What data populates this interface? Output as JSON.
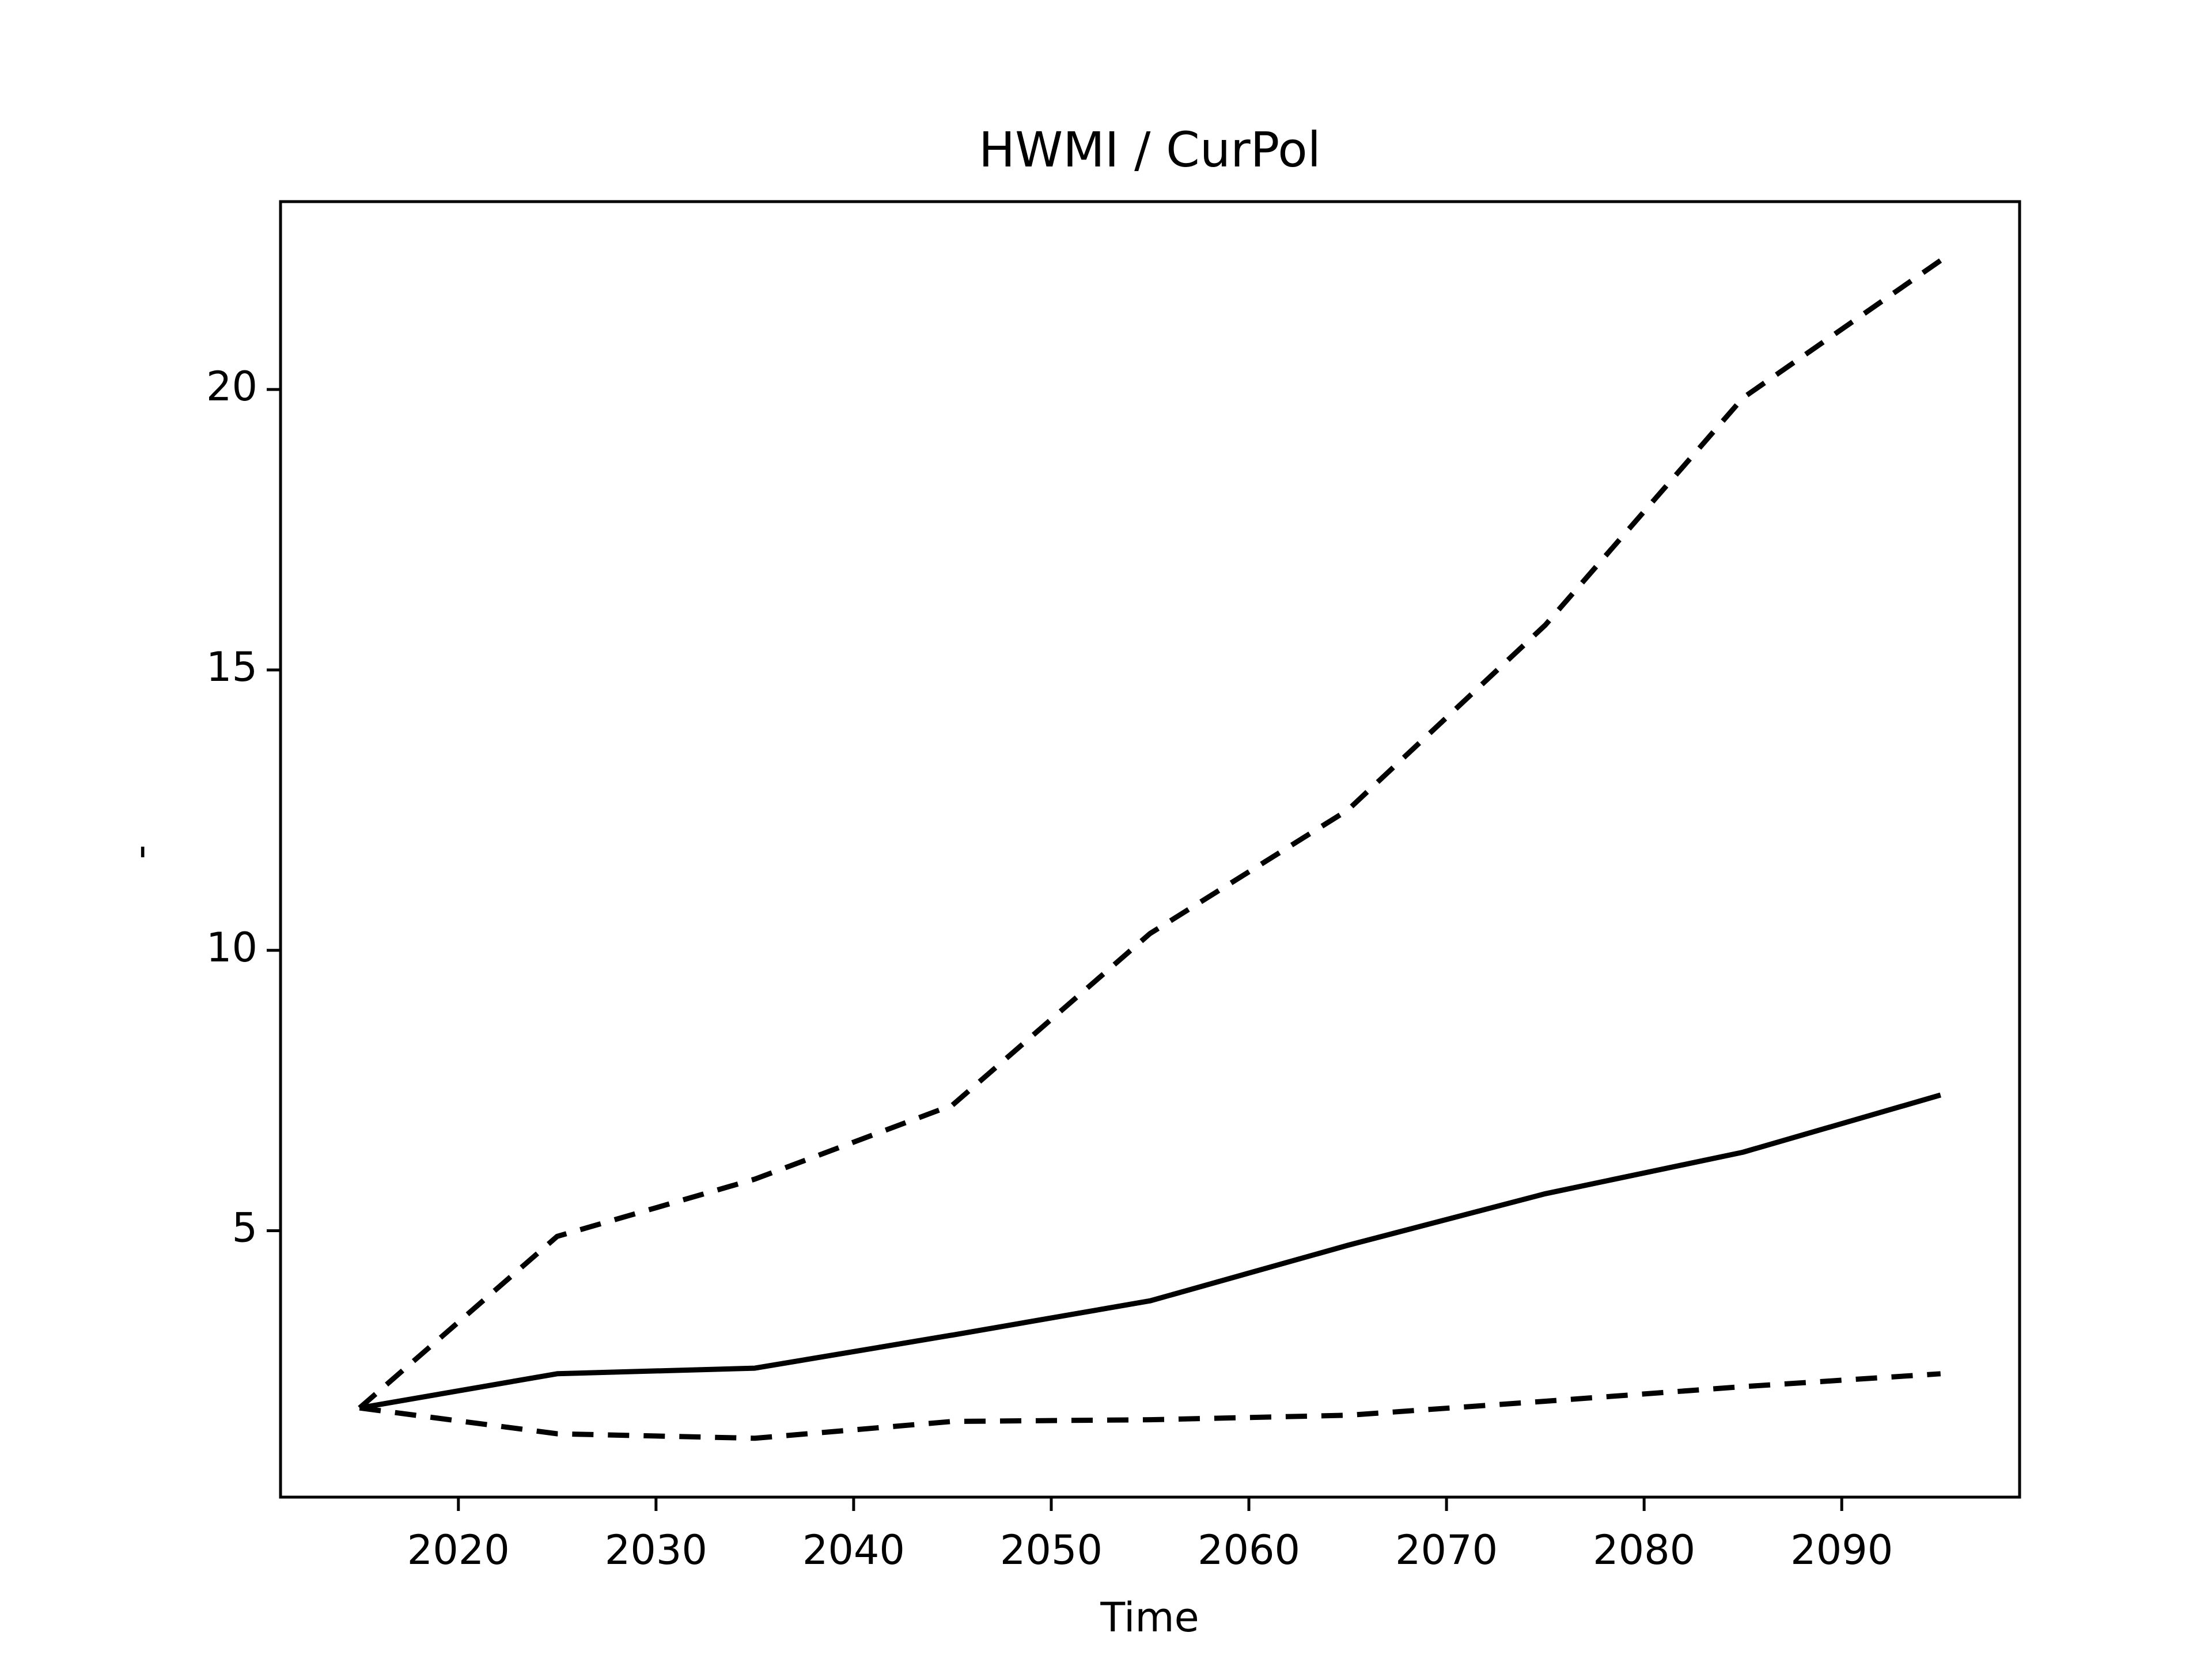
{
  "chart_data": {
    "type": "line",
    "title": "HWMI / CurPol",
    "xlabel": "Time",
    "ylabel": "-",
    "x": [
      2015,
      2025,
      2035,
      2045,
      2055,
      2065,
      2075,
      2085,
      2095
    ],
    "series": [
      {
        "color": "#000000",
        "linestyle": "solid",
        "values": [
          1.84,
          2.45,
          2.55,
          3.14,
          3.75,
          4.74,
          5.66,
          6.4,
          7.42
        ]
      },
      {
        "color": "#000000",
        "linestyle": "dashed",
        "values": [
          1.84,
          4.9,
          5.92,
          7.24,
          10.3,
          12.5,
          15.8,
          19.85,
          22.3
        ]
      },
      {
        "color": "#000000",
        "linestyle": "dashed",
        "values": [
          1.84,
          1.38,
          1.3,
          1.6,
          1.63,
          1.71,
          1.96,
          2.22,
          2.45
        ]
      }
    ],
    "xlim": [
      2011,
      2099
    ],
    "xticks": [
      2020,
      2030,
      2040,
      2050,
      2060,
      2070,
      2080,
      2090
    ],
    "ylim": [
      0.25,
      23.35
    ],
    "yticks": [
      5,
      10,
      15,
      20
    ],
    "grid": false
  }
}
